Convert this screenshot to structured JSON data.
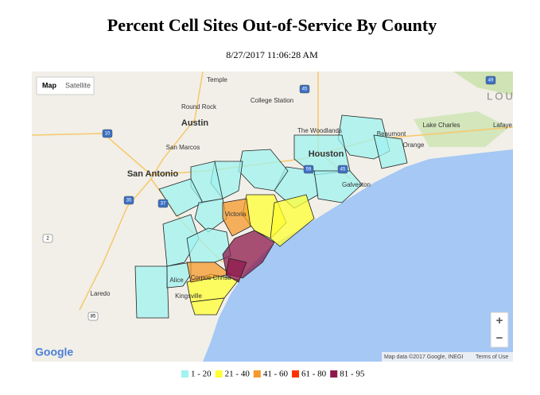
{
  "header": {
    "title": "Percent Cell Sites Out-of-Service By County",
    "timestamp": "8/27/2017 11:06:28 AM"
  },
  "map": {
    "controls": {
      "map": "Map",
      "satellite": "Satellite",
      "zoom_in": "+",
      "zoom_out": "−"
    },
    "places": [
      "Temple",
      "Round Rock",
      "College Station",
      "Austin",
      "The Woodlands",
      "Beaumont",
      "Lake Charles",
      "Lafaye",
      "San Marcos",
      "Houston",
      "Orange",
      "San Antonio",
      "Galveston",
      "Victoria",
      "Alice",
      "Corpus Christi",
      "Kingsville",
      "Laredo",
      "LOU"
    ],
    "highway_shields": [
      "10",
      "45",
      "35",
      "37",
      "59",
      "49",
      "2",
      "85",
      "45"
    ],
    "logo": "Google",
    "attribution": "Map data ©2017 Google, INEGI",
    "terms": "Terms of Use"
  },
  "legend": {
    "items": [
      {
        "label": "1 - 20",
        "color": "#9ff3f0"
      },
      {
        "label": "21 - 40",
        "color": "#ffff33"
      },
      {
        "label": "41 - 60",
        "color": "#f59a2c"
      },
      {
        "label": "61 - 80",
        "color": "#ff3300"
      },
      {
        "label": "81 - 95",
        "color": "#8e1a4c"
      }
    ]
  }
}
